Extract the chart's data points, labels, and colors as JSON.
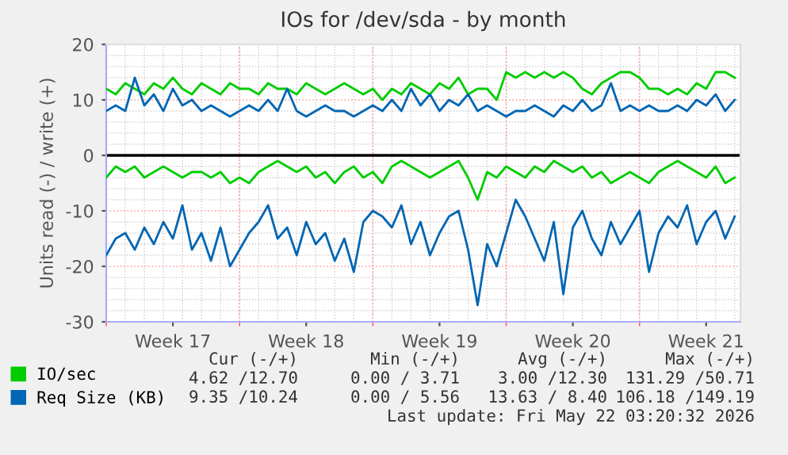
{
  "chart_data": {
    "type": "line",
    "title": "IOs for /dev/sda - by month",
    "ylabel": "Units read (-) / write (+)",
    "categories": [
      null,
      null,
      null,
      null,
      null,
      null,
      null,
      "Week 17",
      null,
      null,
      null,
      null,
      null,
      null,
      null,
      null,
      null,
      null,
      null,
      null,
      null,
      "Week 18",
      null,
      null,
      null,
      null,
      null,
      null,
      null,
      null,
      null,
      null,
      null,
      null,
      null,
      "Week 19",
      null,
      null,
      null,
      null,
      null,
      null,
      null,
      null,
      null,
      null,
      null,
      null,
      null,
      "Week 20",
      null,
      null,
      null,
      null,
      null,
      null,
      null,
      null,
      null,
      null,
      null,
      null,
      null,
      "Week 21",
      null,
      null,
      null
    ],
    "ylim": [
      -30,
      20
    ],
    "yticks": [
      -30,
      -20,
      -10,
      0,
      10,
      20
    ],
    "grid": true,
    "legend": "bottom",
    "ref_lines": [
      {
        "axis": "y",
        "value": 0,
        "color": "#000000"
      }
    ],
    "series": [
      {
        "name": "IO/sec",
        "color": "#00cc00",
        "values": [
          12,
          11,
          13,
          12,
          11,
          13,
          12,
          14,
          12,
          11,
          13,
          12,
          11,
          13,
          12,
          12,
          11,
          13,
          12,
          12,
          11,
          13,
          12,
          11,
          12,
          13,
          12,
          11,
          12,
          10,
          12,
          11,
          13,
          12,
          11,
          13,
          12,
          14,
          11,
          12,
          12,
          10,
          15,
          14,
          15,
          14,
          15,
          14,
          15,
          14,
          12,
          11,
          13,
          14,
          15,
          15,
          14,
          12,
          12,
          11,
          12,
          11,
          13,
          12,
          15,
          15,
          14
        ]
      },
      {
        "color": "#00cc00",
        "values": [
          -4,
          -2,
          -3,
          -2,
          -4,
          -3,
          -2,
          -3,
          -4,
          -3,
          -3,
          -4,
          -3,
          -5,
          -4,
          -5,
          -3,
          -2,
          -1,
          -2,
          -3,
          -2,
          -4,
          -3,
          -5,
          -3,
          -2,
          -4,
          -3,
          -5,
          -2,
          -1,
          -2,
          -3,
          -4,
          -3,
          -2,
          -1,
          -4,
          -8,
          -3,
          -4,
          -2,
          -3,
          -4,
          -2,
          -3,
          -1,
          -2,
          -3,
          -2,
          -4,
          -3,
          -5,
          -4,
          -3,
          -4,
          -5,
          -3,
          -2,
          -1,
          -2,
          -3,
          -4,
          -2,
          -5,
          -4
        ]
      },
      {
        "name": "Req Size (KB)",
        "color": "#0066b3",
        "values": [
          8,
          9,
          8,
          14,
          9,
          11,
          8,
          12,
          9,
          10,
          8,
          9,
          8,
          7,
          8,
          9,
          8,
          10,
          8,
          12,
          8,
          7,
          8,
          9,
          8,
          8,
          7,
          8,
          9,
          8,
          10,
          8,
          12,
          9,
          11,
          8,
          10,
          9,
          11,
          8,
          9,
          8,
          7,
          8,
          8,
          9,
          8,
          7,
          9,
          8,
          10,
          8,
          9,
          13,
          8,
          9,
          8,
          9,
          8,
          8,
          9,
          8,
          10,
          9,
          11,
          8,
          10
        ]
      },
      {
        "color": "#0066b3",
        "values": [
          -18,
          -15,
          -14,
          -17,
          -13,
          -16,
          -12,
          -15,
          -9,
          -17,
          -14,
          -19,
          -13,
          -20,
          -17,
          -14,
          -12,
          -9,
          -15,
          -13,
          -18,
          -12,
          -16,
          -14,
          -19,
          -15,
          -21,
          -12,
          -10,
          -11,
          -13,
          -9,
          -16,
          -12,
          -18,
          -14,
          -11,
          -10,
          -17,
          -27,
          -16,
          -20,
          -14,
          -8,
          -11,
          -15,
          -19,
          -12,
          -25,
          -13,
          -10,
          -15,
          -18,
          -12,
          -16,
          -13,
          -10,
          -21,
          -14,
          -11,
          -13,
          -9,
          -16,
          -12,
          -10,
          -15,
          -11
        ]
      }
    ],
    "annotations": [
      "Cur (-/+)",
      "Min (-/+)",
      "Avg (-/+)",
      "Max (-/+)",
      "4.62 /12.70",
      "0.00 / 3.71",
      "3.00 /12.30",
      "131.29 /50.71",
      "9.35 /10.24",
      "0.00 / 5.56",
      "13.63 / 8.40",
      "106.18 /149.19",
      "Last update: Fri May 22 03:20:32 2026"
    ]
  }
}
